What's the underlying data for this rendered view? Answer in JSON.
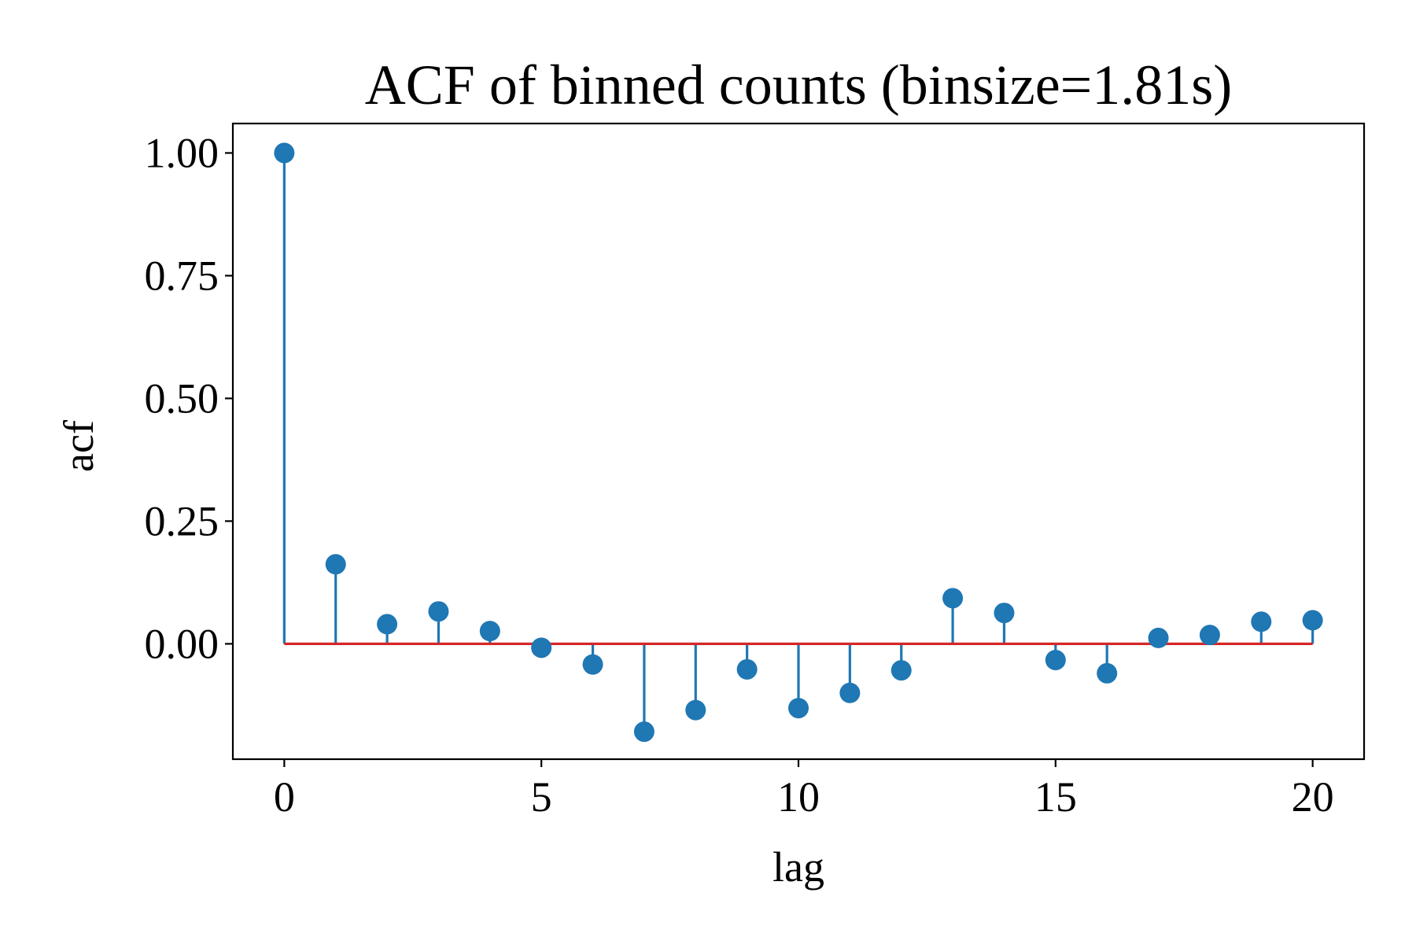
{
  "chart_data": {
    "type": "stem",
    "title": "ACF of binned counts (binsize=1.81s)",
    "xlabel": "lag",
    "ylabel": "acf",
    "xlim": [
      -1,
      21
    ],
    "ylim": [
      -0.235,
      1.06
    ],
    "xticks": [
      0,
      5,
      10,
      15,
      20
    ],
    "xtick_labels": [
      "0",
      "5",
      "10",
      "15",
      "20"
    ],
    "yticks": [
      0.0,
      0.25,
      0.5,
      0.75,
      1.0
    ],
    "ytick_labels": [
      "0.00",
      "0.25",
      "0.50",
      "0.75",
      "1.00"
    ],
    "grid": false,
    "baseline": 0,
    "x": [
      0,
      1,
      2,
      3,
      4,
      5,
      6,
      7,
      8,
      9,
      10,
      11,
      12,
      13,
      14,
      15,
      16,
      17,
      18,
      19,
      20
    ],
    "values": [
      1.0,
      0.162,
      0.04,
      0.066,
      0.026,
      -0.008,
      -0.042,
      -0.179,
      -0.135,
      -0.052,
      -0.131,
      -0.1,
      -0.054,
      0.093,
      0.063,
      -0.033,
      -0.06,
      0.012,
      0.018,
      0.045,
      0.048
    ],
    "colors": {
      "stem": "#1f77b4",
      "marker": "#1f77b4",
      "baseline": "#d62728",
      "axes": "#000000"
    }
  }
}
